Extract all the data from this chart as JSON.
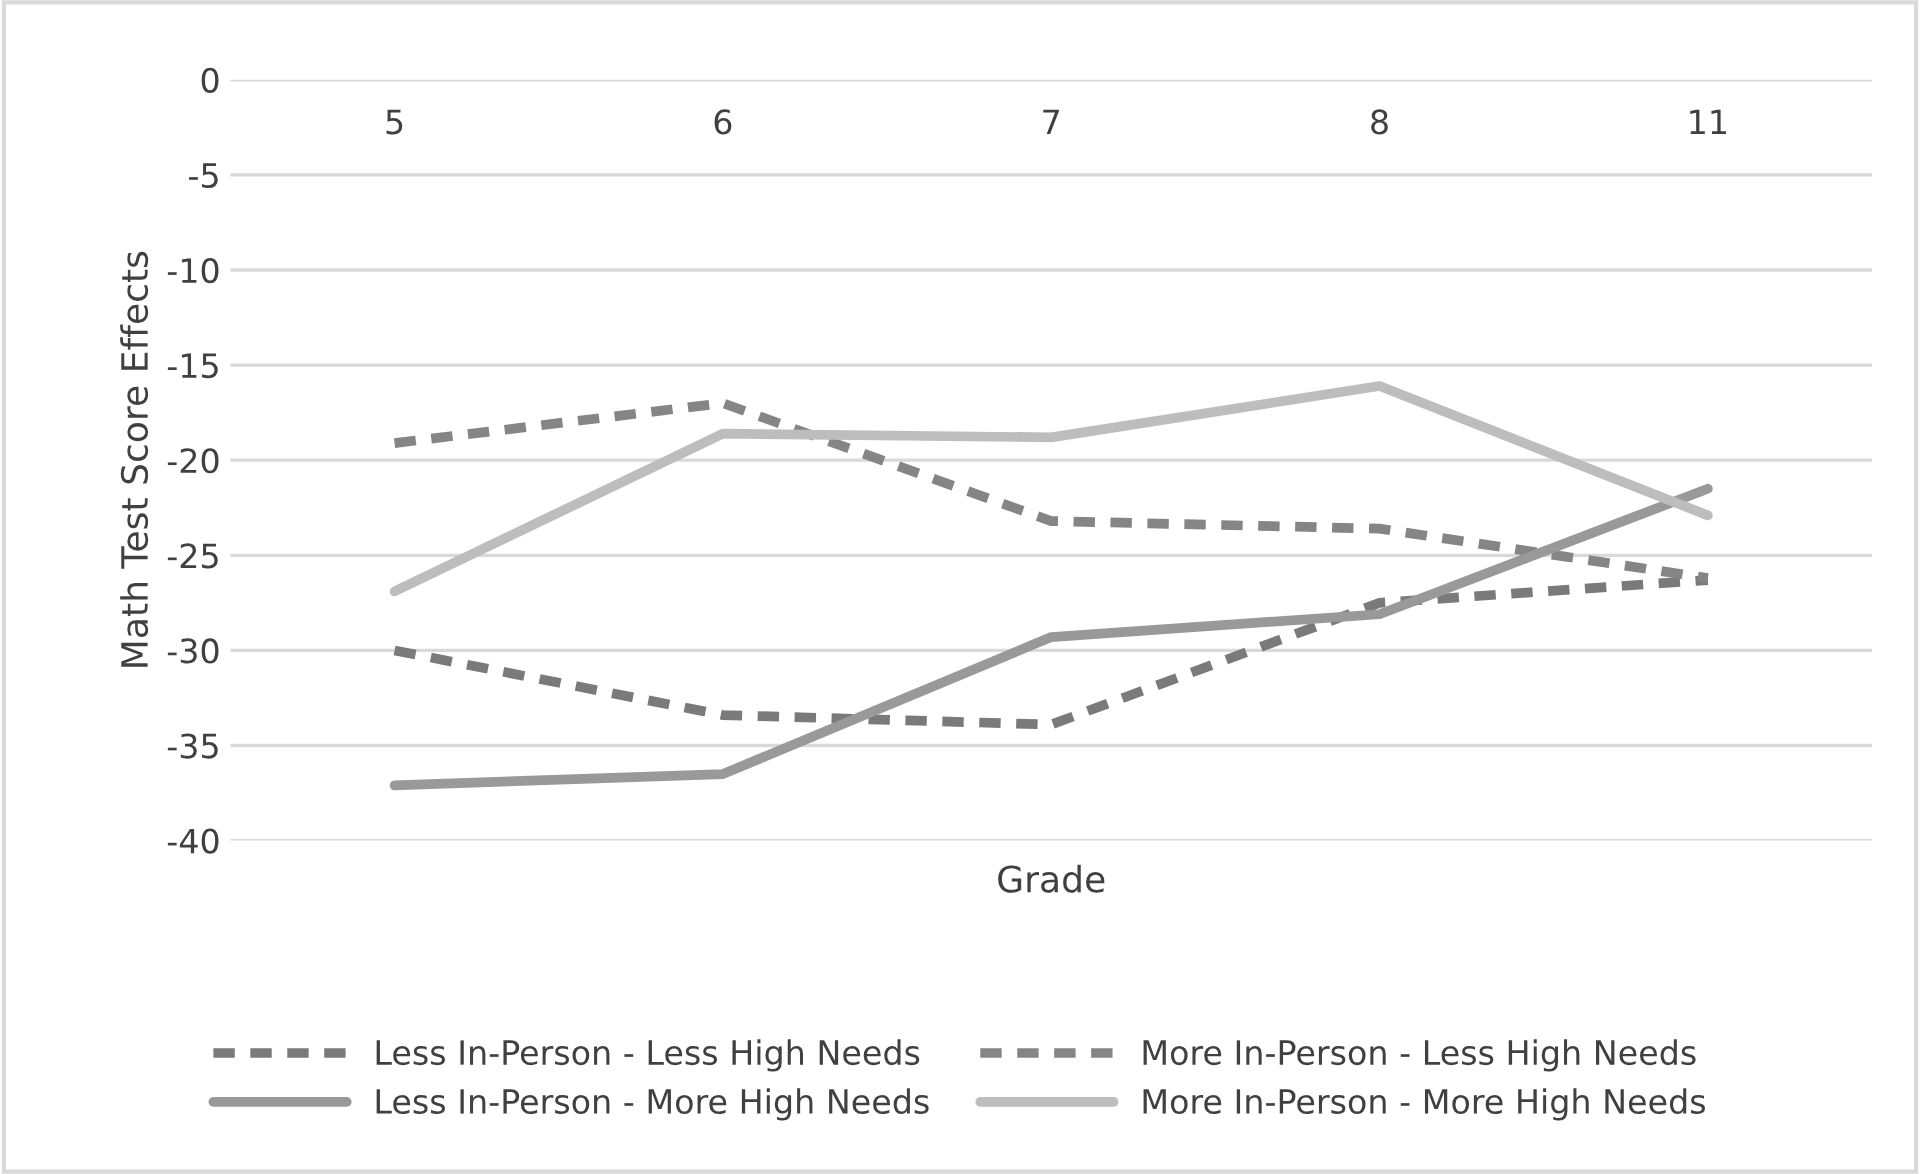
{
  "chart_data": {
    "type": "line",
    "xlabel": "Grade",
    "ylabel": "Math Test Score Effects",
    "categories": [
      "5",
      "6",
      "7",
      "8",
      "11"
    ],
    "series": [
      {
        "name": "Less In-Person - Less High Needs",
        "color": "#7a7a7a",
        "line_style": "dashed",
        "values": [
          -30,
          -33.4,
          -33.9,
          -27.5,
          -26.3
        ]
      },
      {
        "name": "More In-Person - Less High Needs",
        "color": "#858585",
        "line_style": "dashed",
        "values": [
          -19.1,
          -17,
          -23.2,
          -23.6,
          -26.2
        ]
      },
      {
        "name": "Less In-Person - More High Needs",
        "color": "#999999",
        "line_style": "solid",
        "values": [
          -37.1,
          -36.5,
          -29.3,
          -28.1,
          -21.5
        ]
      },
      {
        "name": "More In-Person - More High Needs",
        "color": "#bdbdbd",
        "line_style": "solid",
        "values": [
          -26.9,
          -18.6,
          -18.8,
          -16.1,
          -22.9
        ]
      }
    ],
    "ylim": [
      -40,
      0
    ],
    "yticks": [
      -40,
      -35,
      -30,
      -25,
      -20,
      -15,
      -10,
      -5,
      0
    ],
    "grid": "y",
    "legend": "bottom"
  }
}
